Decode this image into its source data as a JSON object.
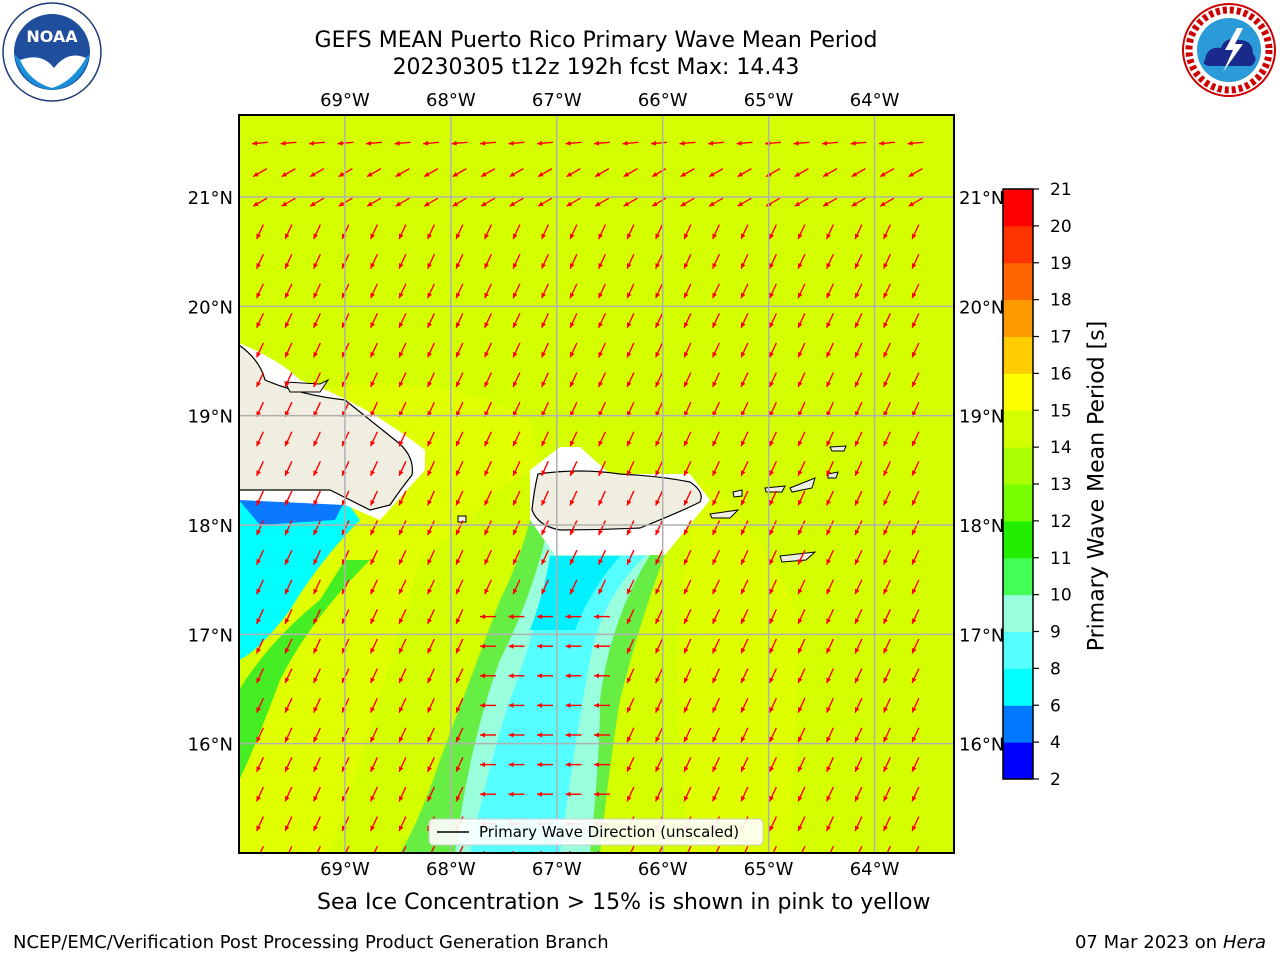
{
  "title_line1": "GEFS MEAN Puerto Rico Primary Wave Mean Period",
  "title_line2": "20230305 t12z 192h fcst   Max: 14.43",
  "map": {
    "lon_ticks": [
      "69°W",
      "68°W",
      "67°W",
      "66°W",
      "65°W",
      "64°W"
    ],
    "lat_ticks": [
      "21°N",
      "20°N",
      "19°N",
      "18°N",
      "17°N",
      "16°N"
    ],
    "lon_values": [
      -69,
      -68,
      -67,
      -66,
      -65,
      -64
    ],
    "lat_values": [
      21,
      20,
      19,
      18,
      17,
      16
    ],
    "lon_range": [
      -70.0,
      -63.25
    ],
    "lat_range": [
      15.0,
      21.75
    ],
    "legend_label": "Primary Wave Direction (unscaled)",
    "arrow_color": "#ff0000",
    "dominant_field_color": "#d4ff00",
    "land_color": "#efeee0",
    "gridlines": true
  },
  "colorbar": {
    "label": "Primary Wave Mean Period [s]",
    "ticks": [
      "2",
      "4",
      "6",
      "8",
      "9",
      "10",
      "11",
      "12",
      "13",
      "14",
      "15",
      "16",
      "17",
      "18",
      "19",
      "20",
      "21"
    ],
    "colors": [
      "#0000ff",
      "#0078ff",
      "#00ffff",
      "#55ffff",
      "#99ffdd",
      "#44ff55",
      "#22ee00",
      "#77ff00",
      "#aaff00",
      "#d4ff00",
      "#ffff00",
      "#ffcc00",
      "#ff9900",
      "#ff6600",
      "#ff3300",
      "#ff0000"
    ]
  },
  "sea_ice_note": "Sea Ice Concentration > 15% is shown in pink to yellow",
  "footer_left": "NCEP/EMC/Verification Post Processing Product Generation Branch",
  "footer_date": "07 Mar 2023 on",
  "footer_host": "Hera",
  "logos": {
    "noaa": {
      "text": "NOAA",
      "icon": "noaa-logo-icon"
    },
    "nws": {
      "text": "NATIONAL WEATHER SERVICE",
      "icon": "nws-logo-icon"
    }
  }
}
